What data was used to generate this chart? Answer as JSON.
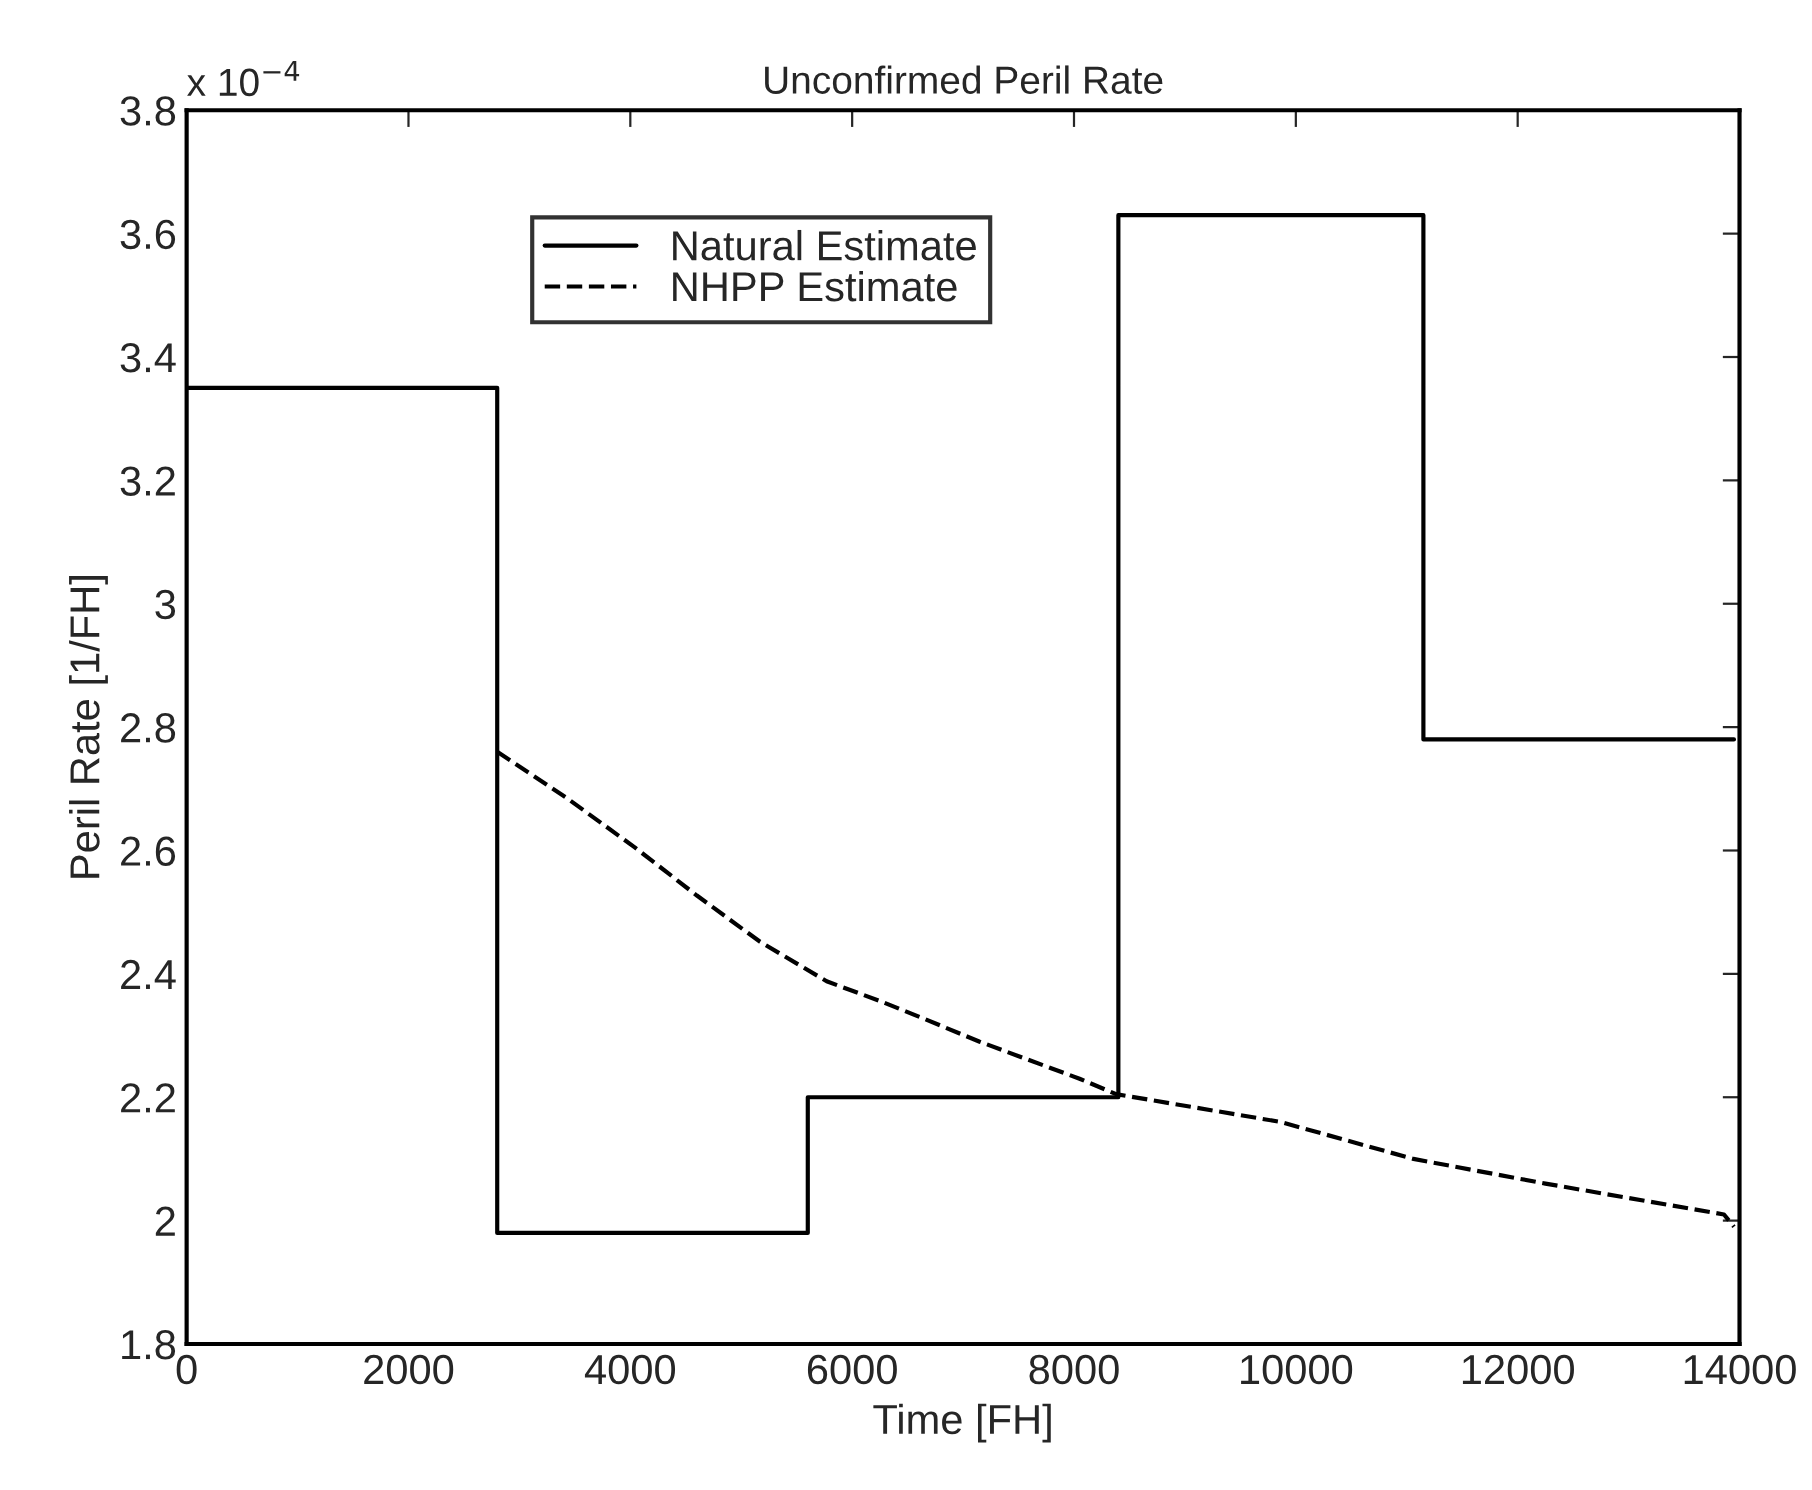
{
  "chart_data": {
    "type": "line",
    "title": "Unconfirmed Peril Rate",
    "xlabel": "Time [FH]",
    "ylabel": "Peril Rate [1/FH]",
    "annotations": [
      "x 10$^{−4}$"
    ],
    "series": [
      {
        "name": "Natural Estimate",
        "type": "step",
        "color": "#000000",
        "line_style": "solid",
        "x": [
          0,
          2800,
          5600,
          8400,
          11150,
          13950
        ],
        "values": [
          3.35,
          1.98,
          2.2,
          3.63,
          2.78,
          2.78
        ]
      },
      {
        "name": "NHPP Estimate",
        "color": "#000000",
        "line_style": "dashed",
        "x": [
          2800,
          3420,
          4040,
          4600,
          5170,
          5770,
          6250,
          6610,
          7150,
          8050,
          8380,
          9860,
          11060,
          12250,
          13860,
          13950
        ],
        "values": [
          2.76,
          2.686,
          2.605,
          2.527,
          2.452,
          2.388,
          2.356,
          2.33,
          2.29,
          2.23,
          2.205,
          2.16,
          2.1,
          2.06,
          2.01,
          1.99
        ]
      }
    ],
    "xlim": [
      0,
      14000
    ],
    "xticks": [
      0,
      2000,
      4000,
      6000,
      8000,
      10000,
      12000,
      14000
    ],
    "ylim": [
      1.8,
      3.8
    ],
    "yticks": [
      1.8,
      2,
      2.2,
      2.4,
      2.6,
      2.8,
      3,
      3.2,
      3.4,
      3.6,
      3.8
    ],
    "grid": false,
    "legend": "top",
    "marker": "none"
  }
}
